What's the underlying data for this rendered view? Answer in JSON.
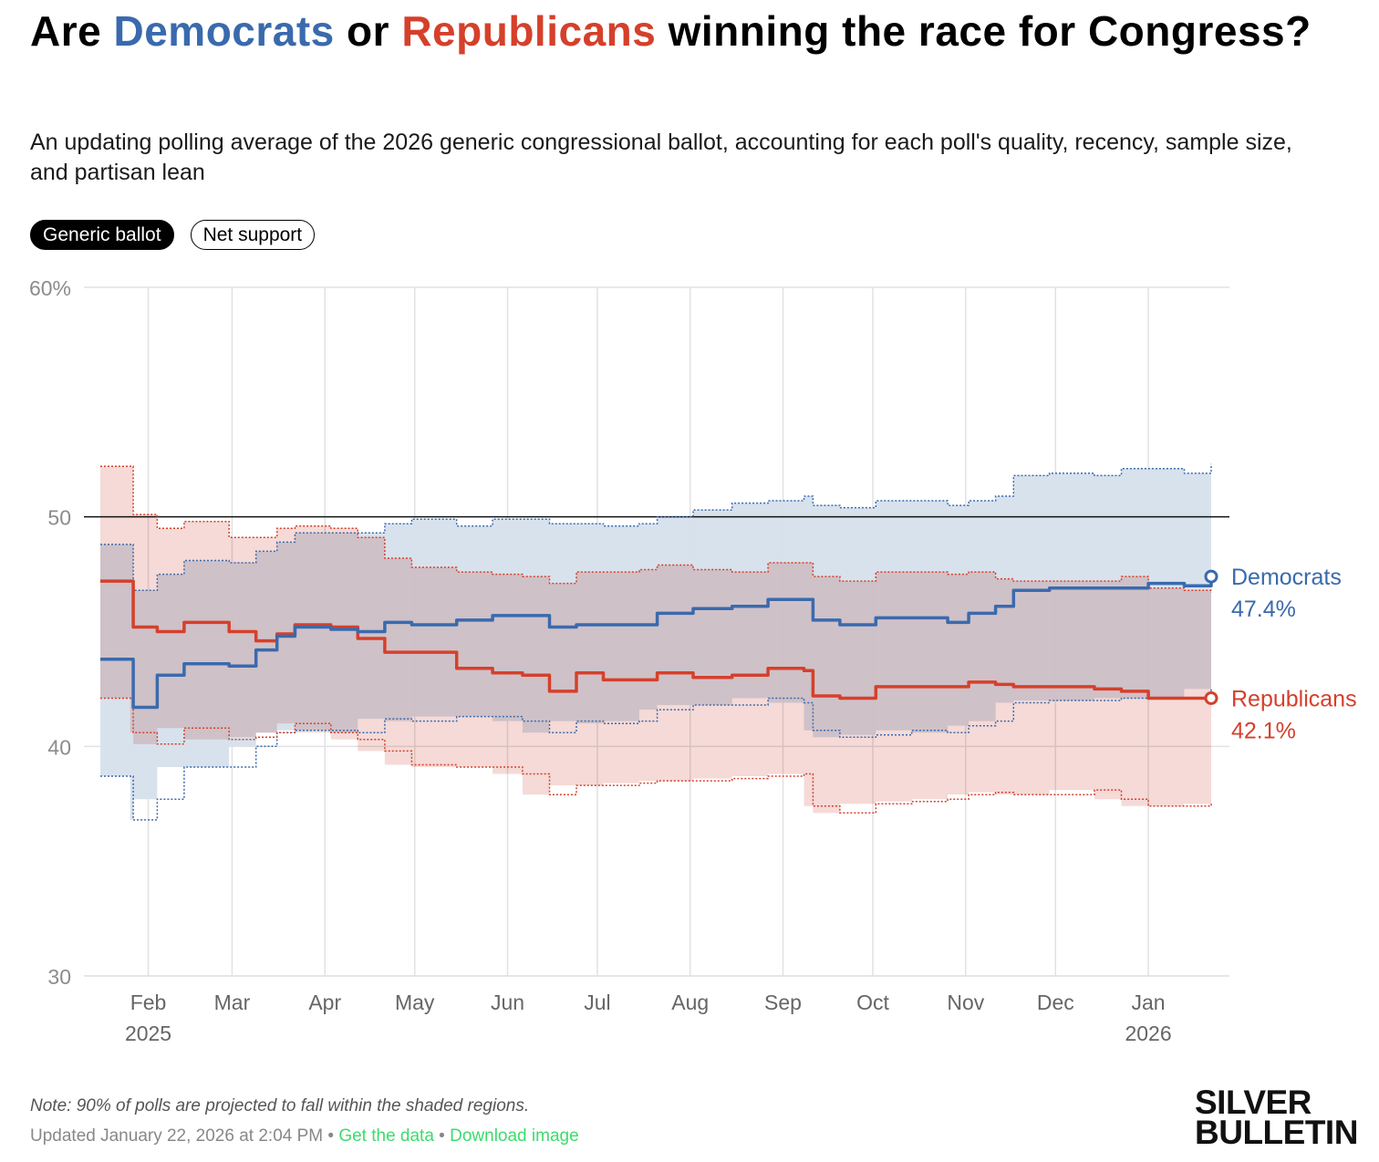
{
  "title": {
    "part1": "Are ",
    "dem": "Democrats",
    "part2": " or ",
    "rep": "Republicans",
    "part3": " winning the race for Congress?"
  },
  "subtitle": "An updating polling average of the 2026 generic congressional ballot, accounting for each poll's quality, recency, sample size, and partisan lean",
  "toggles": [
    {
      "label": "Generic ballot",
      "active": true
    },
    {
      "label": "Net support",
      "active": false
    }
  ],
  "colors": {
    "dem": "#3a6aad",
    "rep": "#d5402b",
    "dem_band": "#d6e0ec",
    "rep_band": "#f6d6d2",
    "overlap": "#d4c4cc"
  },
  "chart_data": {
    "type": "line",
    "ylim": [
      30,
      60
    ],
    "yticks": [
      {
        "v": 60,
        "label": "60%"
      },
      {
        "v": 50,
        "label": "50"
      },
      {
        "v": 40,
        "label": "40"
      },
      {
        "v": 30,
        "label": "30"
      }
    ],
    "reference_line": 50,
    "xlim": [
      "2025-01-16",
      "2026-01-22"
    ],
    "xticks": [
      {
        "date": "2025-02-01",
        "label": "Feb",
        "year": "2025"
      },
      {
        "date": "2025-03-01",
        "label": "Mar"
      },
      {
        "date": "2025-04-01",
        "label": "Apr"
      },
      {
        "date": "2025-05-01",
        "label": "May"
      },
      {
        "date": "2025-06-01",
        "label": "Jun"
      },
      {
        "date": "2025-07-01",
        "label": "Jul"
      },
      {
        "date": "2025-08-01",
        "label": "Aug"
      },
      {
        "date": "2025-09-01",
        "label": "Sep"
      },
      {
        "date": "2025-10-01",
        "label": "Oct"
      },
      {
        "date": "2025-11-01",
        "label": "Nov"
      },
      {
        "date": "2025-12-01",
        "label": "Dec"
      },
      {
        "date": "2026-01-01",
        "label": "Jan",
        "year": "2026"
      }
    ],
    "dates": [
      "2025-01-16",
      "2025-01-26",
      "2025-01-27",
      "2025-02-04",
      "2025-02-13",
      "2025-02-28",
      "2025-03-09",
      "2025-03-16",
      "2025-03-22",
      "2025-04-03",
      "2025-04-12",
      "2025-04-21",
      "2025-04-30",
      "2025-05-15",
      "2025-05-27",
      "2025-06-06",
      "2025-06-15",
      "2025-06-24",
      "2025-07-03",
      "2025-07-15",
      "2025-07-21",
      "2025-08-02",
      "2025-08-15",
      "2025-08-27",
      "2025-09-08",
      "2025-09-11",
      "2025-09-20",
      "2025-10-02",
      "2025-10-14",
      "2025-10-26",
      "2025-11-02",
      "2025-11-11",
      "2025-11-17",
      "2025-11-29",
      "2025-12-14",
      "2025-12-23",
      "2026-01-01",
      "2026-01-13",
      "2026-01-22"
    ],
    "series": [
      {
        "name": "Democrats",
        "key": "dem",
        "end_label": "47.4%",
        "values": [
          43.8,
          43.8,
          41.7,
          43.1,
          43.6,
          43.5,
          44.2,
          44.8,
          45.2,
          45.1,
          45.0,
          45.4,
          45.3,
          45.5,
          45.7,
          45.7,
          45.2,
          45.3,
          45.3,
          45.3,
          45.8,
          46.0,
          46.1,
          46.4,
          46.4,
          45.5,
          45.3,
          45.6,
          45.6,
          45.4,
          45.8,
          46.1,
          46.8,
          46.9,
          46.9,
          46.9,
          47.1,
          47.0,
          47.4
        ],
        "upper": [
          48.8,
          48.8,
          46.8,
          47.5,
          48.1,
          48.0,
          48.5,
          48.9,
          49.3,
          49.3,
          49.3,
          49.7,
          49.9,
          49.6,
          49.9,
          49.9,
          49.7,
          49.7,
          49.6,
          49.7,
          50.0,
          50.3,
          50.6,
          50.7,
          50.9,
          50.5,
          50.4,
          50.7,
          50.7,
          50.5,
          50.7,
          50.9,
          51.8,
          51.9,
          51.8,
          52.1,
          52.1,
          51.9,
          52.3
        ],
        "lower": [
          38.7,
          38.7,
          36.8,
          37.7,
          39.1,
          39.1,
          40.0,
          40.6,
          40.7,
          40.7,
          40.6,
          41.2,
          41.1,
          41.3,
          41.3,
          41.1,
          40.6,
          41.1,
          41.0,
          41.1,
          41.6,
          41.8,
          41.8,
          42.1,
          41.9,
          40.7,
          40.4,
          40.5,
          40.7,
          40.6,
          40.9,
          41.1,
          41.9,
          42.0,
          42.0,
          42.1,
          42.1,
          42.1,
          42.5
        ]
      },
      {
        "name": "Republicans",
        "key": "rep",
        "end_label": "42.1%",
        "values": [
          47.2,
          47.2,
          45.2,
          45.0,
          45.4,
          45.0,
          44.6,
          44.9,
          45.3,
          45.2,
          44.7,
          44.1,
          44.1,
          43.4,
          43.2,
          43.1,
          42.4,
          43.2,
          42.9,
          42.9,
          43.2,
          43.0,
          43.1,
          43.4,
          43.3,
          42.2,
          42.1,
          42.6,
          42.6,
          42.6,
          42.8,
          42.7,
          42.6,
          42.6,
          42.5,
          42.4,
          42.1,
          42.1,
          42.1
        ],
        "upper": [
          52.2,
          52.2,
          50.1,
          49.5,
          49.8,
          49.1,
          49.1,
          49.5,
          49.6,
          49.5,
          49.1,
          48.2,
          47.8,
          47.6,
          47.5,
          47.4,
          47.1,
          47.6,
          47.6,
          47.7,
          47.9,
          47.7,
          47.6,
          48.0,
          48.0,
          47.4,
          47.2,
          47.6,
          47.6,
          47.5,
          47.6,
          47.3,
          47.2,
          47.2,
          47.2,
          47.4,
          46.9,
          46.8,
          46.7
        ],
        "lower": [
          42.1,
          42.1,
          40.6,
          40.1,
          40.8,
          40.3,
          40.4,
          40.6,
          41.0,
          40.6,
          40.3,
          39.8,
          39.2,
          39.1,
          39.1,
          38.8,
          37.9,
          38.3,
          38.3,
          38.4,
          38.5,
          38.5,
          38.6,
          38.7,
          38.8,
          37.4,
          37.1,
          37.5,
          37.6,
          37.7,
          37.9,
          38.0,
          37.9,
          37.9,
          38.1,
          37.7,
          37.4,
          37.4,
          37.5
        ]
      }
    ]
  },
  "footer": {
    "note": "Note: 90% of polls are projected to fall within the shaded regions.",
    "updated": "Updated January 22, 2026 at 2:04 PM",
    "sep": " • ",
    "get_data": "Get the data",
    "download": "Download image",
    "logo": "SILVER BULLETIN"
  }
}
